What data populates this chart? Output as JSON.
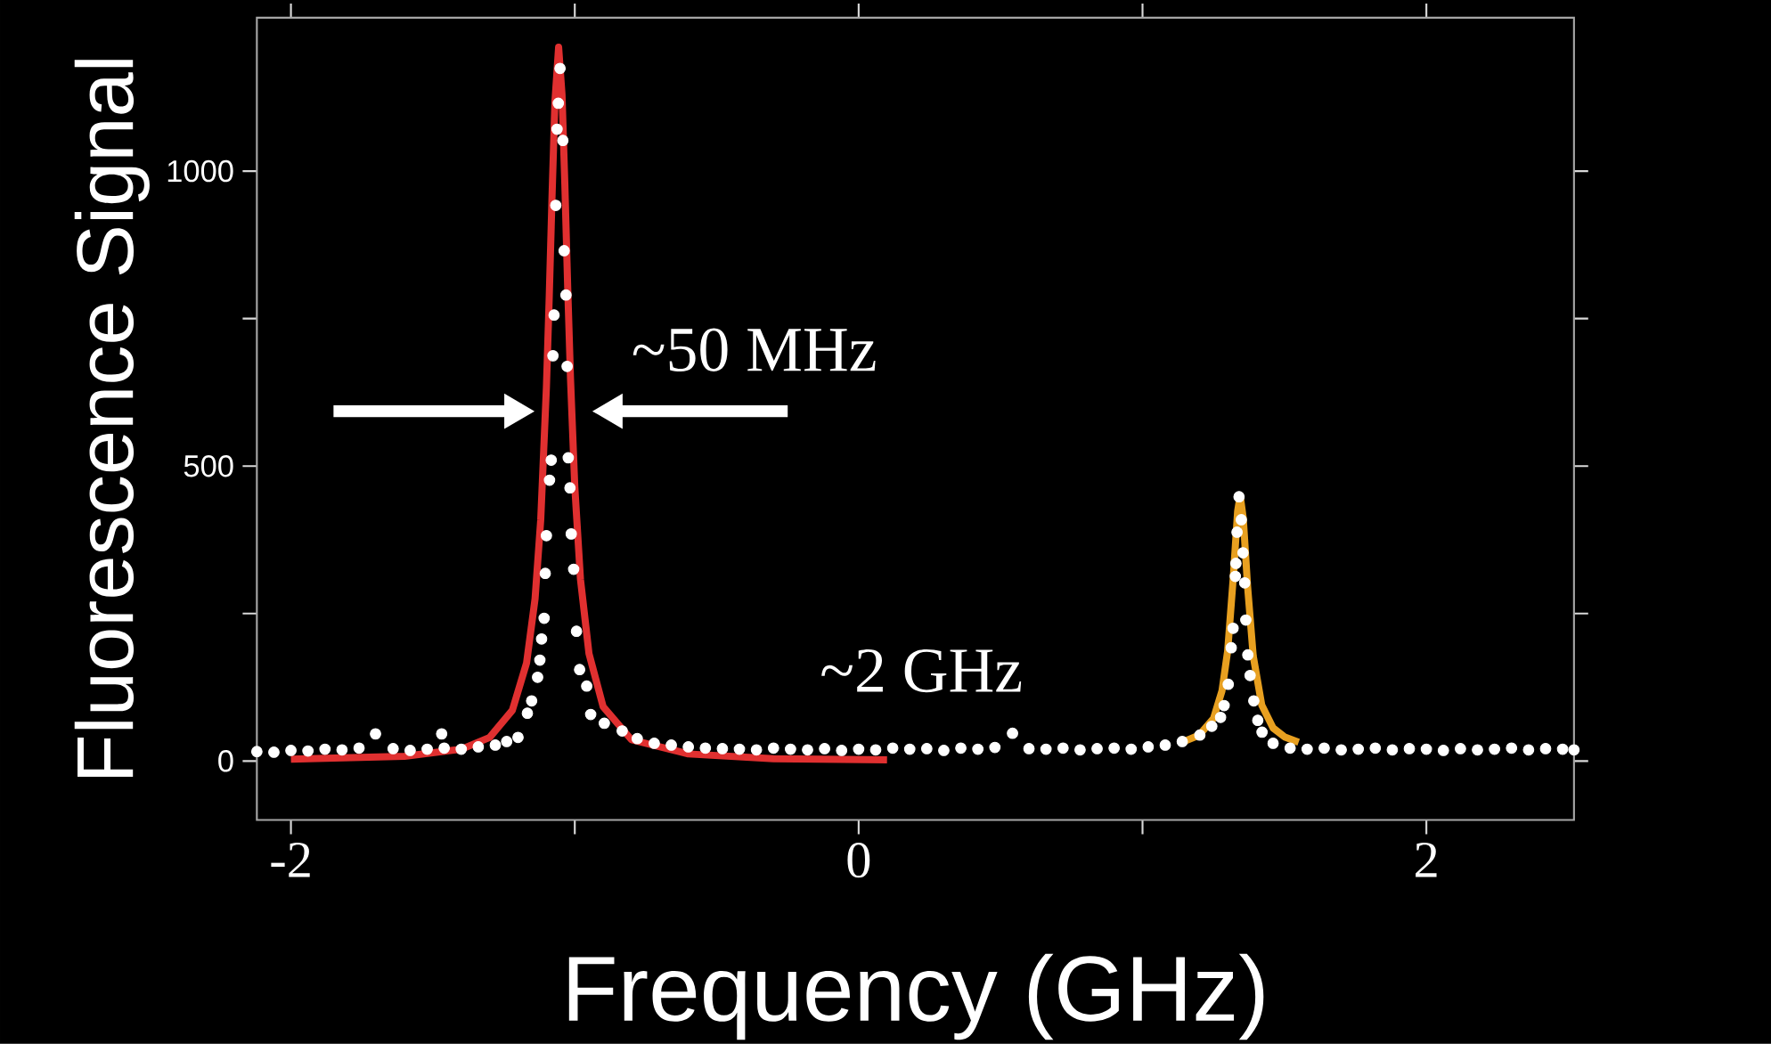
{
  "chart_data": {
    "type": "scatter",
    "xlabel": "Frequency (GHz)",
    "ylabel": "Fluorescence Signal",
    "xlim": [
      -2.12,
      2.52
    ],
    "ylim": [
      -100,
      1260
    ],
    "xticks": [
      -2,
      {
        "value": -1,
        "label": null
      },
      0,
      {
        "value": 1,
        "label": null
      },
      2
    ],
    "yticks": [
      0,
      {
        "value": 250,
        "label": null
      },
      500,
      {
        "value": 750,
        "label": null
      },
      1000
    ],
    "annotations": [
      "~50 MHz",
      "~2 GHz"
    ],
    "series": [
      {
        "type": "line",
        "color": "#e03030",
        "marker": "none",
        "x": [
          -2.0,
          -1.6,
          -1.4,
          -1.3,
          -1.22,
          -1.17,
          -1.14,
          -1.12,
          -1.1,
          -1.09,
          -1.08,
          -1.07,
          -1.057,
          -1.045,
          -1.035,
          -1.025,
          -1.015,
          -1.0,
          -0.98,
          -0.95,
          -0.9,
          -0.8,
          -0.6,
          -0.3,
          0.1
        ],
        "values": [
          3,
          8,
          20,
          40,
          86,
          166,
          275,
          409,
          633,
          787,
          960,
          1117,
          1210,
          1130,
          977,
          803,
          647,
          465,
          308,
          182,
          92,
          36,
          12,
          4,
          2
        ]
      },
      {
        "type": "line",
        "color": "#e8a020",
        "marker": "none",
        "x": [
          1.15,
          1.2,
          1.25,
          1.28,
          1.3,
          1.32,
          1.335,
          1.344,
          1.355,
          1.37,
          1.39,
          1.42,
          1.46,
          1.5,
          1.55
        ],
        "values": [
          34,
          44,
          72,
          119,
          187,
          313,
          423,
          450,
          411,
          297,
          178,
          95,
          56,
          41,
          32
        ]
      },
      {
        "color": "#ffffff",
        "marker": "circle",
        "x": [
          -2.12,
          -2.06,
          -2.0,
          -1.94,
          -1.88,
          -1.82,
          -1.76,
          -1.702,
          -1.64,
          -1.58,
          -1.52,
          -1.469,
          -1.46,
          -1.4,
          -1.34,
          -1.28,
          -1.24,
          -1.2,
          -1.167,
          -1.152,
          -1.131,
          -1.123,
          -1.117,
          -1.108,
          -1.104,
          -1.1,
          -1.089,
          -1.083,
          -1.077,
          -1.073,
          -1.067,
          -1.0625,
          -1.058,
          -1.052,
          -1.042,
          -1.0375,
          -1.031,
          -1.027,
          -1.023,
          -1.017,
          -1.0125,
          -1.004,
          -0.994,
          -0.983,
          -0.958,
          -0.944,
          -0.896,
          -0.833,
          -0.78,
          -0.72,
          -0.66,
          -0.6,
          -0.54,
          -0.48,
          -0.42,
          -0.36,
          -0.3,
          -0.24,
          -0.18,
          -0.12,
          -0.06,
          0.0,
          0.06,
          0.12,
          0.18,
          0.24,
          0.3,
          0.36,
          0.42,
          0.48,
          0.542,
          0.6,
          0.66,
          0.72,
          0.78,
          0.84,
          0.9,
          0.96,
          1.02,
          1.08,
          1.14,
          1.202,
          1.244,
          1.275,
          1.2875,
          1.302,
          1.3125,
          1.319,
          1.327,
          1.329,
          1.333,
          1.34,
          1.348,
          1.354,
          1.36,
          1.364,
          1.371,
          1.379,
          1.392,
          1.406,
          1.421,
          1.46,
          1.52,
          1.58,
          1.64,
          1.7,
          1.76,
          1.82,
          1.88,
          1.94,
          2.0,
          2.06,
          2.12,
          2.18,
          2.24,
          2.3,
          2.36,
          2.42,
          2.48,
          2.52
        ],
        "values": [
          16,
          15,
          18,
          17,
          20,
          19,
          22,
          46,
          21,
          18,
          20,
          46,
          22,
          20,
          24,
          27,
          33,
          40,
          81,
          102,
          142,
          171,
          207,
          242,
          318,
          382,
          476,
          510,
          687,
          756,
          942,
          1071,
          1115,
          1174,
          1052,
          865,
          790,
          669,
          514,
          463,
          385,
          325,
          220,
          155,
          127,
          79,
          64,
          51,
          38,
          30,
          27,
          24,
          22,
          21,
          20,
          19,
          22,
          20,
          19,
          21,
          18,
          20,
          19,
          22,
          20,
          21,
          18,
          22,
          20,
          23,
          47,
          21,
          20,
          22,
          19,
          21,
          22,
          20,
          24,
          27,
          33,
          44,
          59,
          74,
          94,
          130,
          192,
          225,
          313,
          335,
          388,
          448,
          409,
          353,
          302,
          239,
          180,
          145,
          102,
          69,
          49,
          30,
          22,
          20,
          22,
          19,
          20,
          22,
          19,
          21,
          20,
          18,
          21,
          19,
          20,
          22,
          19,
          21,
          20,
          19
        ]
      }
    ]
  }
}
